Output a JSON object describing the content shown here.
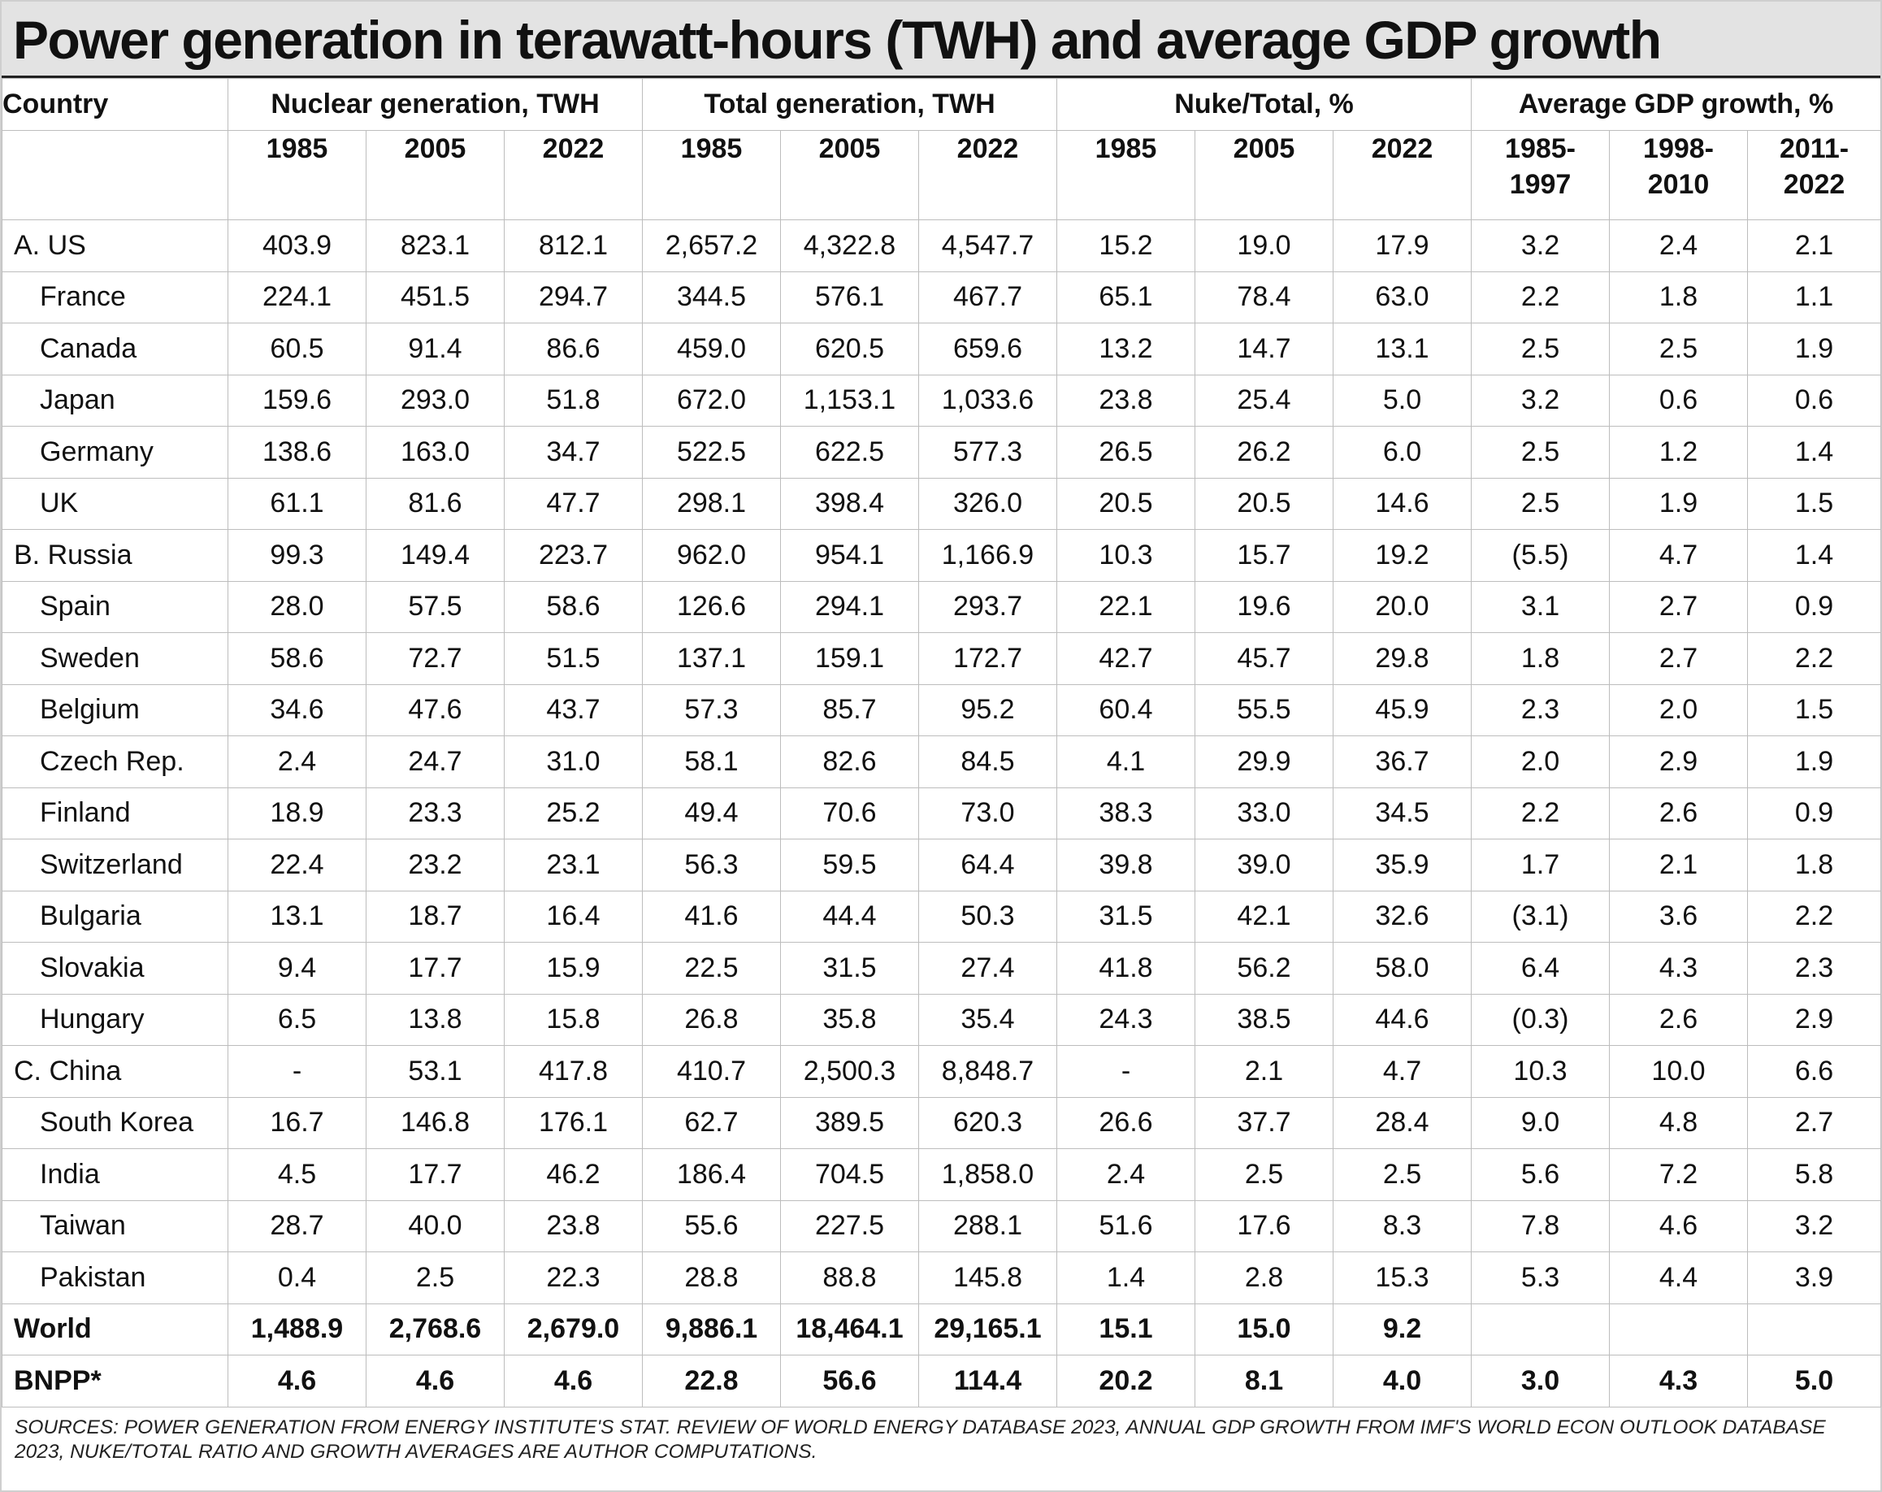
{
  "title": "Power generation in terawatt-hours (TWH) and average GDP growth",
  "chart_data": {
    "type": "table",
    "title": "Power generation in terawatt-hours (TWH) and average GDP growth",
    "country_header": "Country",
    "column_groups": [
      {
        "label": "Nuclear generation, TWH",
        "columns": [
          "1985",
          "2005",
          "2022"
        ]
      },
      {
        "label": "Total generation, TWH",
        "columns": [
          "1985",
          "2005",
          "2022"
        ]
      },
      {
        "label": "Nuke/Total, %",
        "columns": [
          "1985",
          "2005",
          "2022"
        ]
      },
      {
        "label": "Average GDP growth, %",
        "columns": [
          "1985-1997",
          "1998-2010",
          "2011-2022"
        ]
      }
    ],
    "rows": [
      {
        "country": "A. US",
        "values": [
          "403.9",
          "823.1",
          "812.1",
          "2,657.2",
          "4,322.8",
          "4,547.7",
          "15.2",
          "19.0",
          "17.9",
          "3.2",
          "2.4",
          "2.1"
        ]
      },
      {
        "country": "France",
        "values": [
          "224.1",
          "451.5",
          "294.7",
          "344.5",
          "576.1",
          "467.7",
          "65.1",
          "78.4",
          "63.0",
          "2.2",
          "1.8",
          "1.1"
        ]
      },
      {
        "country": "Canada",
        "values": [
          "60.5",
          "91.4",
          "86.6",
          "459.0",
          "620.5",
          "659.6",
          "13.2",
          "14.7",
          "13.1",
          "2.5",
          "2.5",
          "1.9"
        ]
      },
      {
        "country": "Japan",
        "values": [
          "159.6",
          "293.0",
          "51.8",
          "672.0",
          "1,153.1",
          "1,033.6",
          "23.8",
          "25.4",
          "5.0",
          "3.2",
          "0.6",
          "0.6"
        ]
      },
      {
        "country": "Germany",
        "values": [
          "138.6",
          "163.0",
          "34.7",
          "522.5",
          "622.5",
          "577.3",
          "26.5",
          "26.2",
          "6.0",
          "2.5",
          "1.2",
          "1.4"
        ]
      },
      {
        "country": "UK",
        "values": [
          "61.1",
          "81.6",
          "47.7",
          "298.1",
          "398.4",
          "326.0",
          "20.5",
          "20.5",
          "14.6",
          "2.5",
          "1.9",
          "1.5"
        ]
      },
      {
        "country": "B. Russia",
        "values": [
          "99.3",
          "149.4",
          "223.7",
          "962.0",
          "954.1",
          "1,166.9",
          "10.3",
          "15.7",
          "19.2",
          "(5.5)",
          "4.7",
          "1.4"
        ]
      },
      {
        "country": "Spain",
        "values": [
          "28.0",
          "57.5",
          "58.6",
          "126.6",
          "294.1",
          "293.7",
          "22.1",
          "19.6",
          "20.0",
          "3.1",
          "2.7",
          "0.9"
        ]
      },
      {
        "country": "Sweden",
        "values": [
          "58.6",
          "72.7",
          "51.5",
          "137.1",
          "159.1",
          "172.7",
          "42.7",
          "45.7",
          "29.8",
          "1.8",
          "2.7",
          "2.2"
        ]
      },
      {
        "country": "Belgium",
        "values": [
          "34.6",
          "47.6",
          "43.7",
          "57.3",
          "85.7",
          "95.2",
          "60.4",
          "55.5",
          "45.9",
          "2.3",
          "2.0",
          "1.5"
        ]
      },
      {
        "country": "Czech Rep.",
        "values": [
          "2.4",
          "24.7",
          "31.0",
          "58.1",
          "82.6",
          "84.5",
          "4.1",
          "29.9",
          "36.7",
          "2.0",
          "2.9",
          "1.9"
        ]
      },
      {
        "country": "Finland",
        "values": [
          "18.9",
          "23.3",
          "25.2",
          "49.4",
          "70.6",
          "73.0",
          "38.3",
          "33.0",
          "34.5",
          "2.2",
          "2.6",
          "0.9"
        ]
      },
      {
        "country": "Switzerland",
        "values": [
          "22.4",
          "23.2",
          "23.1",
          "56.3",
          "59.5",
          "64.4",
          "39.8",
          "39.0",
          "35.9",
          "1.7",
          "2.1",
          "1.8"
        ]
      },
      {
        "country": "Bulgaria",
        "values": [
          "13.1",
          "18.7",
          "16.4",
          "41.6",
          "44.4",
          "50.3",
          "31.5",
          "42.1",
          "32.6",
          "(3.1)",
          "3.6",
          "2.2"
        ]
      },
      {
        "country": "Slovakia",
        "values": [
          "9.4",
          "17.7",
          "15.9",
          "22.5",
          "31.5",
          "27.4",
          "41.8",
          "56.2",
          "58.0",
          "6.4",
          "4.3",
          "2.3"
        ]
      },
      {
        "country": "Hungary",
        "values": [
          "6.5",
          "13.8",
          "15.8",
          "26.8",
          "35.8",
          "35.4",
          "24.3",
          "38.5",
          "44.6",
          "(0.3)",
          "2.6",
          "2.9"
        ]
      },
      {
        "country": "C. China",
        "values": [
          "-",
          "53.1",
          "417.8",
          "410.7",
          "2,500.3",
          "8,848.7",
          "-",
          "2.1",
          "4.7",
          "10.3",
          "10.0",
          "6.6"
        ]
      },
      {
        "country": "South Korea",
        "values": [
          "16.7",
          "146.8",
          "176.1",
          "62.7",
          "389.5",
          "620.3",
          "26.6",
          "37.7",
          "28.4",
          "9.0",
          "4.8",
          "2.7"
        ]
      },
      {
        "country": "India",
        "values": [
          "4.5",
          "17.7",
          "46.2",
          "186.4",
          "704.5",
          "1,858.0",
          "2.4",
          "2.5",
          "2.5",
          "5.6",
          "7.2",
          "5.8"
        ]
      },
      {
        "country": "Taiwan",
        "values": [
          "28.7",
          "40.0",
          "23.8",
          "55.6",
          "227.5",
          "288.1",
          "51.6",
          "17.6",
          "8.3",
          "7.8",
          "4.6",
          "3.2"
        ]
      },
      {
        "country": "Pakistan",
        "values": [
          "0.4",
          "2.5",
          "22.3",
          "28.8",
          "88.8",
          "145.8",
          "1.4",
          "2.8",
          "15.3",
          "5.3",
          "4.4",
          "3.9"
        ]
      },
      {
        "country": "World",
        "values": [
          "1,488.9",
          "2,768.6",
          "2,679.0",
          "9,886.1",
          "18,464.1",
          "29,165.1",
          "15.1",
          "15.0",
          "9.2",
          "",
          "",
          ""
        ]
      },
      {
        "country": "BNPP*",
        "values": [
          "4.6",
          "4.6",
          "4.6",
          "22.8",
          "56.6",
          "114.4",
          "20.2",
          "8.1",
          "4.0",
          "3.0",
          "4.3",
          "5.0"
        ]
      }
    ],
    "notes": "SOURCES: POWER GENERATION FROM ENERGY INSTITUTE'S STAT. REVIEW OF WORLD ENERGY DATABASE 2023, ANNUAL GDP GROWTH FROM IMF'S WORLD ECON OUTLOOK DATABASE 2023, NUKE/TOTAL RATIO AND GROWTH AVERAGES ARE AUTHOR COMPUTATIONS."
  }
}
